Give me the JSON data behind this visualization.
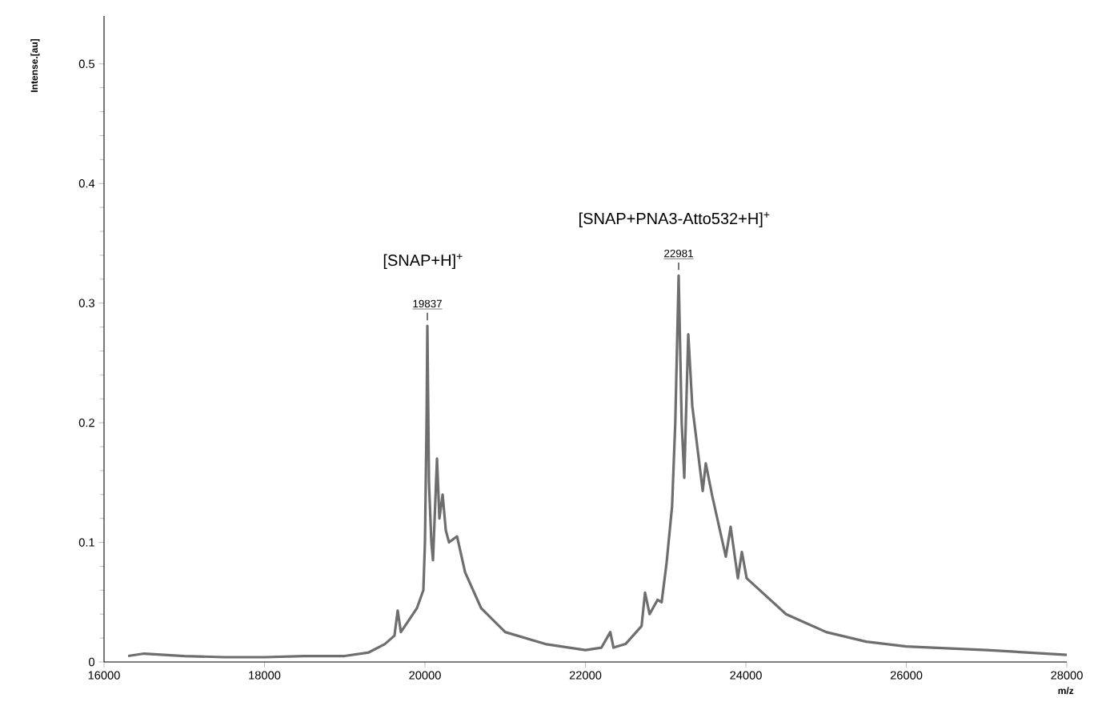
{
  "chart_data": {
    "type": "line",
    "xlabel": "m/z",
    "ylabel": "Intense.[au]",
    "xlim": [
      16000,
      28000
    ],
    "ylim": [
      0,
      0.54
    ],
    "xticks": [
      16000,
      18000,
      20000,
      22000,
      24000,
      26000,
      28000
    ],
    "yticks": [
      0,
      0.1,
      0.2,
      0.3,
      0.4,
      0.5
    ],
    "grid": false,
    "marker": "none",
    "line_style": "solid",
    "series": [
      {
        "color": "#6e6e6e",
        "x": [
          16300,
          16500,
          17000,
          17500,
          18000,
          18500,
          19000,
          19300,
          19500,
          19620,
          19660,
          19700,
          19800,
          19900,
          19980,
          20000,
          20020,
          20030,
          20050,
          20080,
          20100,
          20150,
          20180,
          20220,
          20260,
          20300,
          20400,
          20500,
          20700,
          21000,
          21500,
          22000,
          22200,
          22310,
          22350,
          22500,
          22700,
          22743,
          22800,
          22900,
          22950,
          23012,
          23080,
          23120,
          23162,
          23200,
          23232,
          23282,
          23332,
          23462,
          23500,
          23580,
          23750,
          23810,
          23900,
          23950,
          24010,
          24500,
          25000,
          25500,
          26000,
          27000,
          28000
        ],
        "values": [
          0.005,
          0.007,
          0.005,
          0.004,
          0.004,
          0.005,
          0.005,
          0.008,
          0.015,
          0.022,
          0.043,
          0.025,
          0.035,
          0.045,
          0.06,
          0.1,
          0.2,
          0.281,
          0.15,
          0.1,
          0.085,
          0.17,
          0.12,
          0.14,
          0.11,
          0.1,
          0.105,
          0.075,
          0.045,
          0.025,
          0.015,
          0.01,
          0.012,
          0.025,
          0.012,
          0.015,
          0.03,
          0.058,
          0.04,
          0.052,
          0.05,
          0.083,
          0.13,
          0.2,
          0.323,
          0.2,
          0.154,
          0.274,
          0.214,
          0.143,
          0.166,
          0.139,
          0.088,
          0.113,
          0.07,
          0.092,
          0.07,
          0.04,
          0.025,
          0.017,
          0.013,
          0.01,
          0.006
        ]
      }
    ],
    "annotations": [
      {
        "text": "19837",
        "x": 20030,
        "y": 0.281
      },
      {
        "text": "22981",
        "x": 23162,
        "y": 0.323
      },
      "[SNAP+H]$^{+}$",
      "[SNAP+PNA3-Atto532+H]$^{+}$"
    ]
  }
}
